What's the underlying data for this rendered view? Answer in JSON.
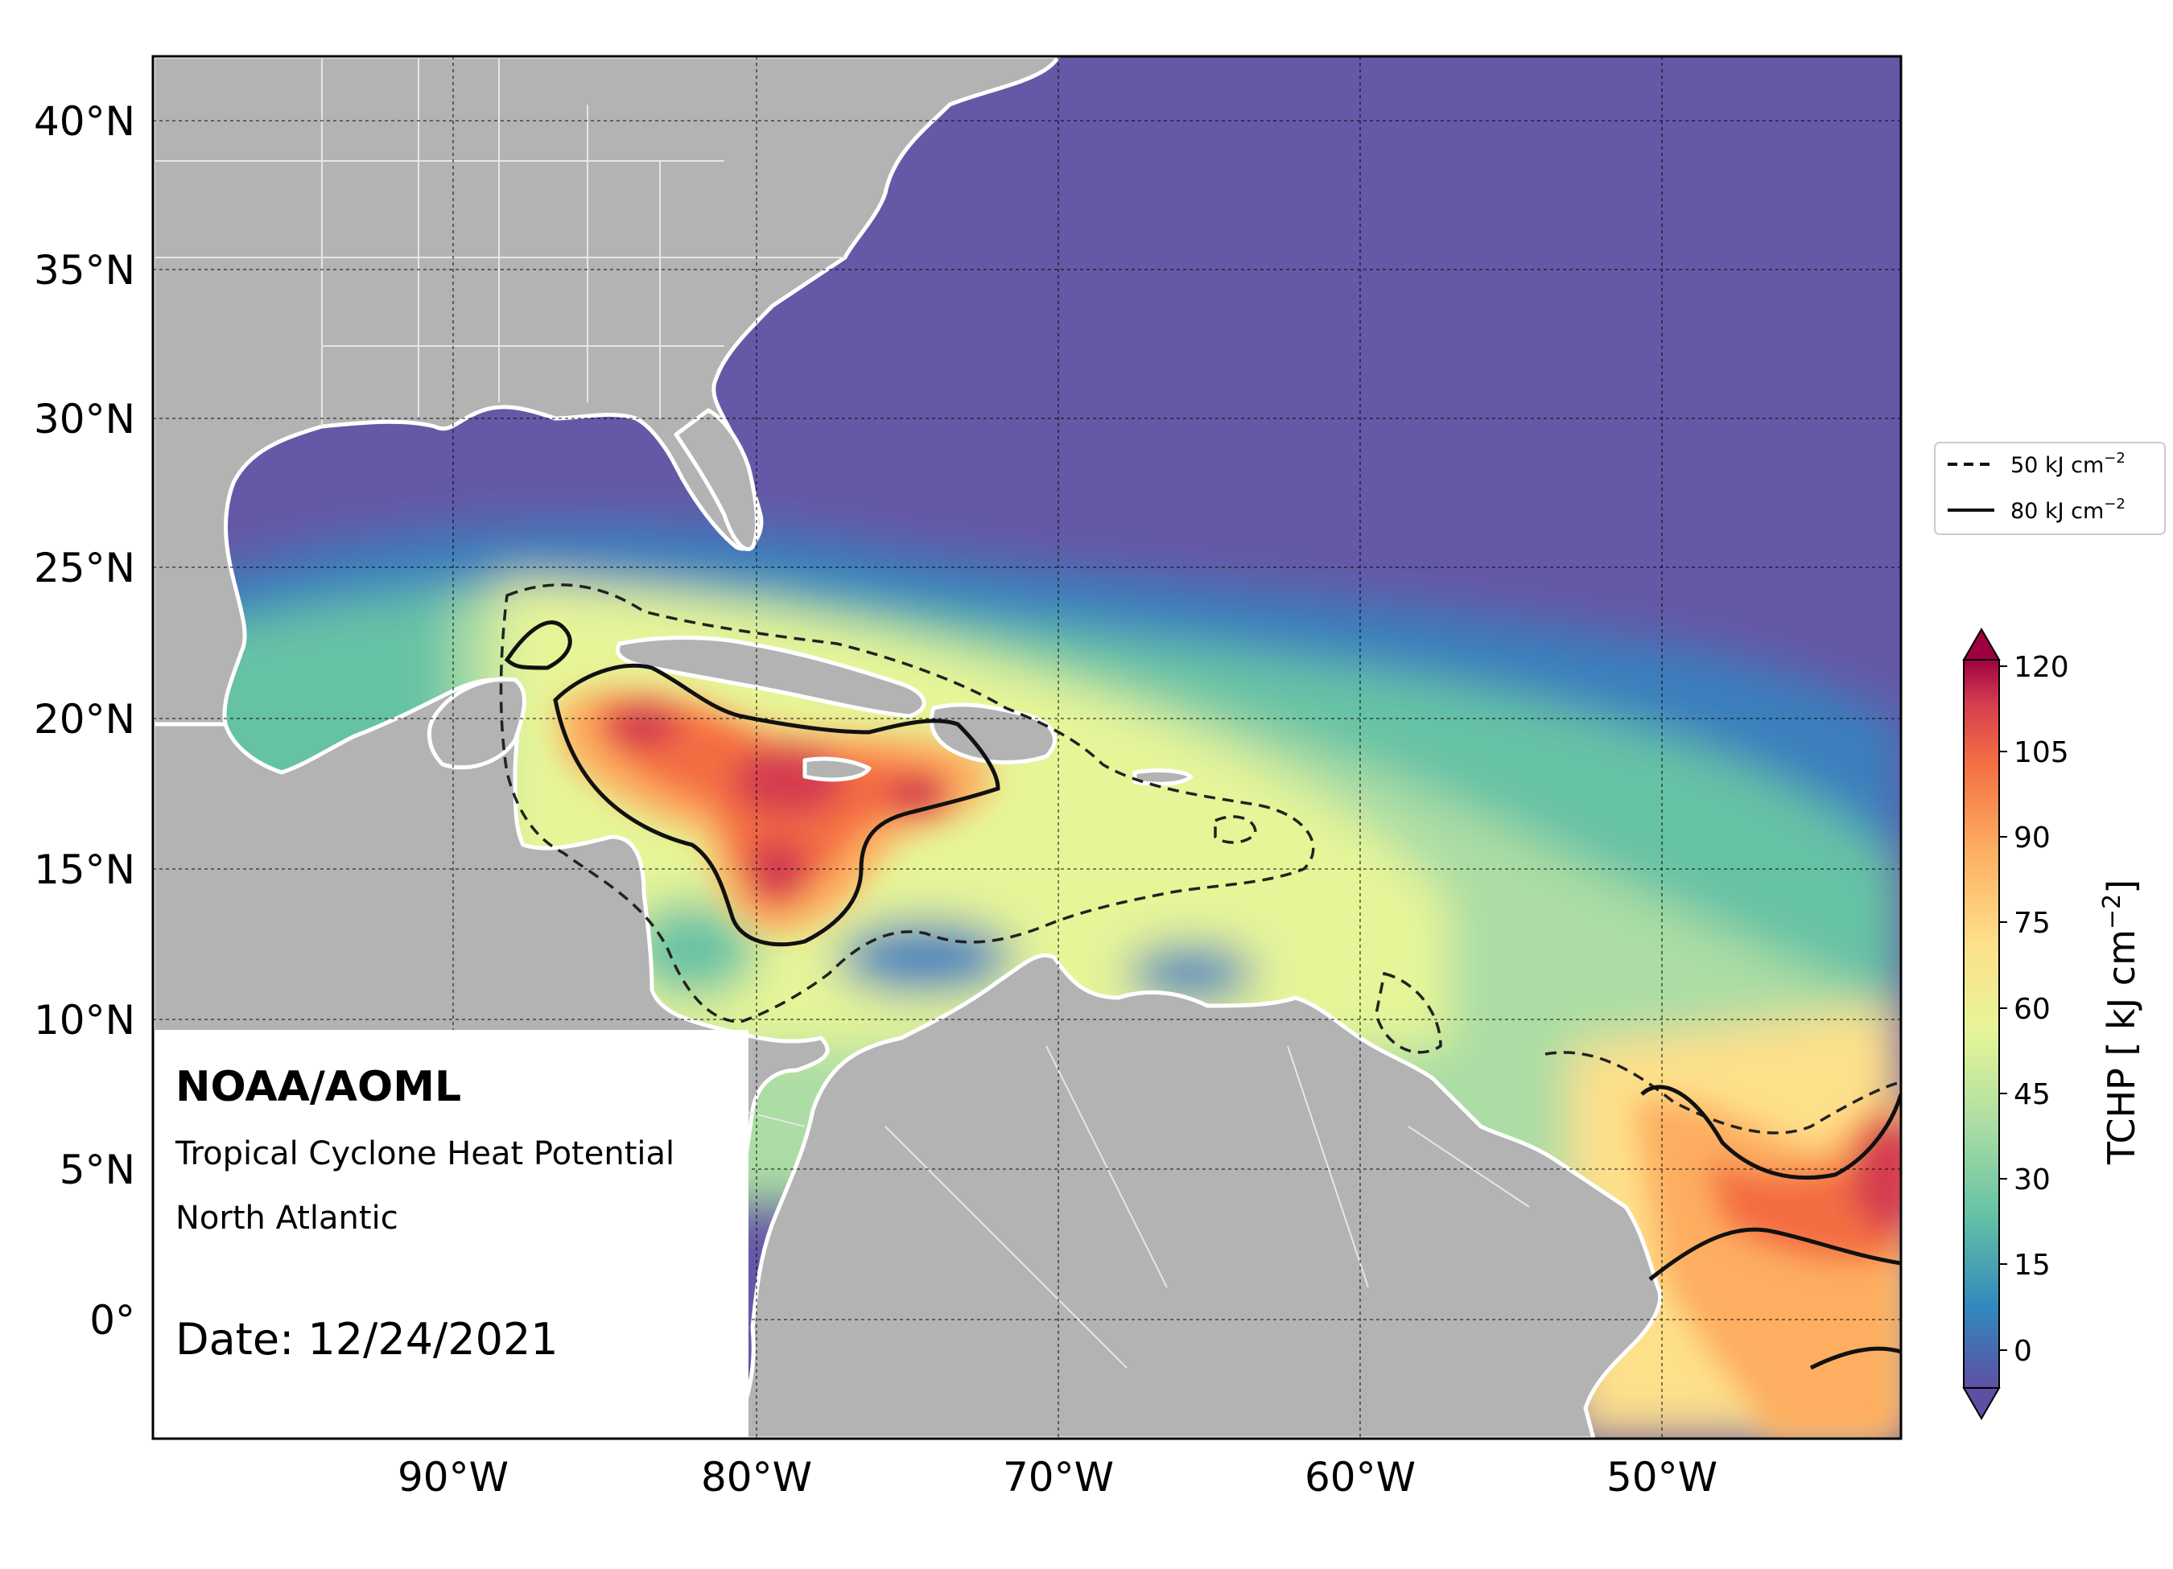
{
  "map": {
    "lat_labels": [
      "40°N",
      "35°N",
      "30°N",
      "25°N",
      "20°N",
      "15°N",
      "10°N",
      "5°N",
      "0°"
    ],
    "lon_labels": [
      "90°W",
      "80°W",
      "70°W",
      "60°W",
      "50°W"
    ],
    "land_color": "#b3b3b3",
    "ocean_cold_color": "#6558a6"
  },
  "legend": {
    "entries": [
      {
        "label": "50 kJ cm",
        "sup": "−2",
        "style": "dashed"
      },
      {
        "label": "80 kJ cm",
        "sup": "−2",
        "style": "solid"
      }
    ]
  },
  "colorbar": {
    "label": "TCHP [ kJ cm",
    "label_sup": "−2",
    "label_end": "]",
    "ticks": [
      "0",
      "15",
      "30",
      "45",
      "60",
      "75",
      "90",
      "105",
      "120"
    ],
    "colors": [
      "#5e4fa2",
      "#3288bd",
      "#66c2a5",
      "#abdda4",
      "#e6f598",
      "#fee08b",
      "#fdae61",
      "#f46d43",
      "#d53e4f",
      "#9e0142"
    ]
  },
  "annotation": {
    "org": "NOAA/AOML",
    "product": "Tropical Cyclone Heat Potential",
    "region": "North Atlantic",
    "date": "Date: 12/24/2021"
  }
}
